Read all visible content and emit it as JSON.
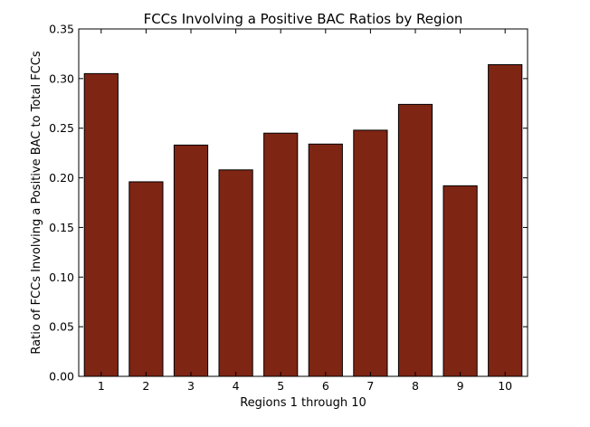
{
  "chart_data": {
    "type": "bar",
    "title": "FCCs Involving a Positive BAC Ratios by Region",
    "xlabel": "Regions 1 through 10",
    "ylabel": "Ratio of FCCs Involving a Positive BAC to Total FCCs",
    "categories": [
      "1",
      "2",
      "3",
      "4",
      "5",
      "6",
      "7",
      "8",
      "9",
      "10"
    ],
    "values": [
      0.305,
      0.196,
      0.233,
      0.208,
      0.245,
      0.234,
      0.248,
      0.274,
      0.192,
      0.314
    ],
    "ylim": [
      0,
      0.35
    ],
    "yticks": [
      "0.00",
      "0.05",
      "0.10",
      "0.15",
      "0.20",
      "0.25",
      "0.30",
      "0.35"
    ],
    "bar_color": "#7f2514",
    "grid": false,
    "legend": "none"
  }
}
